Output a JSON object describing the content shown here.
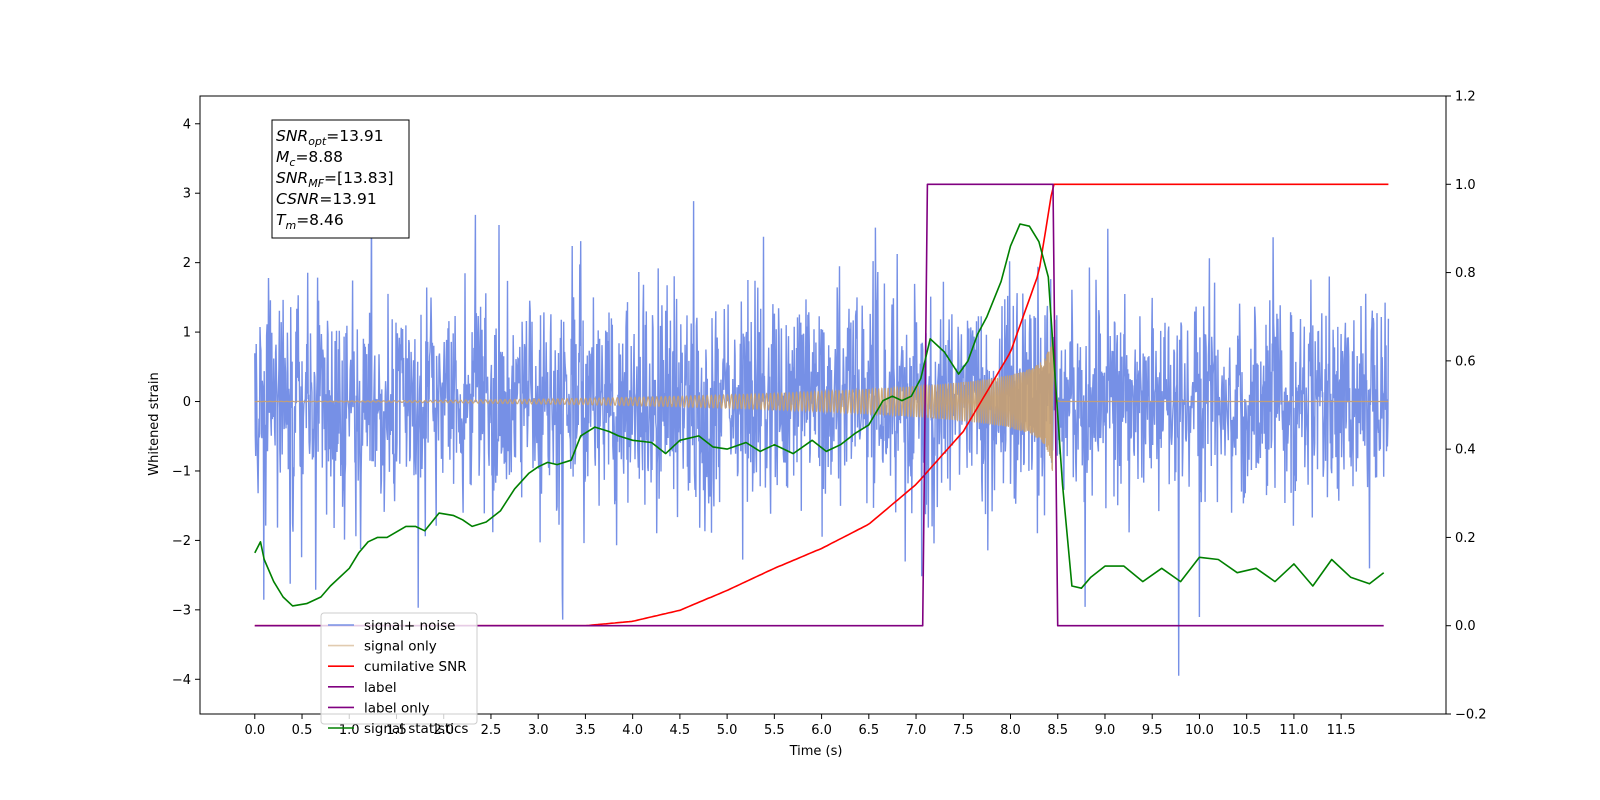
{
  "chart_data": {
    "type": "line",
    "xlabel": "Time (s)",
    "ylabel": "Whitened strain",
    "x_ticks": [
      "0.0",
      "0.5",
      "1.0",
      "1.5",
      "2.0",
      "2.5",
      "3.0",
      "3.5",
      "4.0",
      "4.5",
      "5.0",
      "5.5",
      "6.0",
      "6.5",
      "7.0",
      "7.5",
      "8.0",
      "8.5",
      "9.0",
      "9.5",
      "10.0",
      "10.5",
      "11.0",
      "11.5"
    ],
    "y_left_ticks": [
      "−4",
      "−3",
      "−2",
      "−1",
      "0",
      "1",
      "2",
      "3",
      "4"
    ],
    "y_right_ticks": [
      "−0.2",
      "0.0",
      "0.2",
      "0.4",
      "0.6",
      "0.8",
      "1.0",
      "1.2"
    ],
    "xlim": [
      -0.58,
      12.61
    ],
    "ylim_left": [
      -4.5,
      4.4
    ],
    "ylim_right": [
      -0.2,
      1.2
    ],
    "grid": false,
    "legend_position": "lower-left",
    "annotation_box": {
      "lines": [
        {
          "base": "SNR",
          "sub": "opt",
          "rest": "=13.91"
        },
        {
          "base": "M",
          "sub": "c",
          "rest": "=8.88"
        },
        {
          "base": "SNR",
          "sub": "MF",
          "rest": "=[13.83]"
        },
        {
          "base": "CSNR",
          "sub": "",
          "rest": "=13.91"
        },
        {
          "base": "T",
          "sub": "m",
          "rest": "=8.46"
        }
      ]
    },
    "series": [
      {
        "name": "signal+ noise",
        "color": "#6a87e4",
        "axis": "left",
        "description_values": {
          "x_range": [
            0,
            12
          ],
          "noise_band": [
            -1.7,
            1.6
          ],
          "peak_max": 4.0,
          "peak_min": -3.95
        }
      },
      {
        "name": "signal only",
        "color": "#c8a070",
        "axis": "left",
        "chirp": {
          "start": 0,
          "merger": 8.45,
          "end": 12,
          "max_amplitude": 1.0
        }
      },
      {
        "name": "cumilative SNR",
        "color": "#ff0000",
        "axis": "right",
        "x": [
          0,
          3.5,
          4.0,
          4.5,
          5.0,
          5.5,
          6.0,
          6.5,
          7.0,
          7.5,
          8.0,
          8.3,
          8.45,
          12
        ],
        "y": [
          0.0,
          0.0,
          0.01,
          0.035,
          0.08,
          0.13,
          0.175,
          0.23,
          0.32,
          0.44,
          0.62,
          0.8,
          1.0,
          1.0
        ]
      },
      {
        "name": "label",
        "color": "#800080",
        "axis": "right",
        "x": [
          0,
          7.07,
          7.12,
          8.45,
          8.5,
          11.95
        ],
        "y": [
          0.0,
          0.0,
          1.0,
          1.0,
          0.0,
          0.0
        ]
      },
      {
        "name": "label only",
        "color": "#800080",
        "axis": "right",
        "legend_only": true
      },
      {
        "name": "signal statistics",
        "color": "#008000",
        "axis": "right",
        "x": [
          0.0,
          0.06,
          0.1,
          0.2,
          0.3,
          0.4,
          0.55,
          0.7,
          0.8,
          1.0,
          1.1,
          1.2,
          1.3,
          1.4,
          1.6,
          1.7,
          1.8,
          1.95,
          2.1,
          2.2,
          2.3,
          2.45,
          2.6,
          2.75,
          2.9,
          3.0,
          3.1,
          3.2,
          3.35,
          3.45,
          3.6,
          3.75,
          3.85,
          4.0,
          4.2,
          4.35,
          4.5,
          4.7,
          4.85,
          5.0,
          5.2,
          5.35,
          5.5,
          5.7,
          5.9,
          6.05,
          6.2,
          6.35,
          6.5,
          6.65,
          6.75,
          6.85,
          6.95,
          7.05,
          7.15,
          7.3,
          7.45,
          7.55,
          7.65,
          7.75,
          7.9,
          8.0,
          8.1,
          8.2,
          8.3,
          8.4,
          8.46,
          8.55,
          8.65,
          8.75,
          8.85,
          9.0,
          9.2,
          9.4,
          9.6,
          9.8,
          10.0,
          10.2,
          10.4,
          10.6,
          10.8,
          11.0,
          11.2,
          11.4,
          11.6,
          11.8,
          11.95
        ],
        "y": [
          0.165,
          0.19,
          0.15,
          0.1,
          0.065,
          0.045,
          0.05,
          0.065,
          0.09,
          0.13,
          0.165,
          0.19,
          0.2,
          0.2,
          0.225,
          0.225,
          0.215,
          0.255,
          0.25,
          0.24,
          0.225,
          0.235,
          0.26,
          0.31,
          0.345,
          0.36,
          0.37,
          0.365,
          0.375,
          0.43,
          0.45,
          0.44,
          0.43,
          0.42,
          0.415,
          0.39,
          0.42,
          0.43,
          0.405,
          0.4,
          0.415,
          0.395,
          0.41,
          0.39,
          0.42,
          0.395,
          0.41,
          0.435,
          0.455,
          0.51,
          0.52,
          0.51,
          0.52,
          0.56,
          0.65,
          0.62,
          0.57,
          0.6,
          0.66,
          0.7,
          0.78,
          0.86,
          0.91,
          0.905,
          0.87,
          0.79,
          0.6,
          0.32,
          0.09,
          0.085,
          0.11,
          0.135,
          0.135,
          0.1,
          0.13,
          0.1,
          0.155,
          0.15,
          0.12,
          0.13,
          0.1,
          0.14,
          0.09,
          0.15,
          0.11,
          0.095,
          0.12
        ]
      }
    ],
    "legend": [
      "signal+ noise",
      "signal only",
      "cumilative SNR",
      "label",
      "label only",
      "signal statistics"
    ]
  }
}
